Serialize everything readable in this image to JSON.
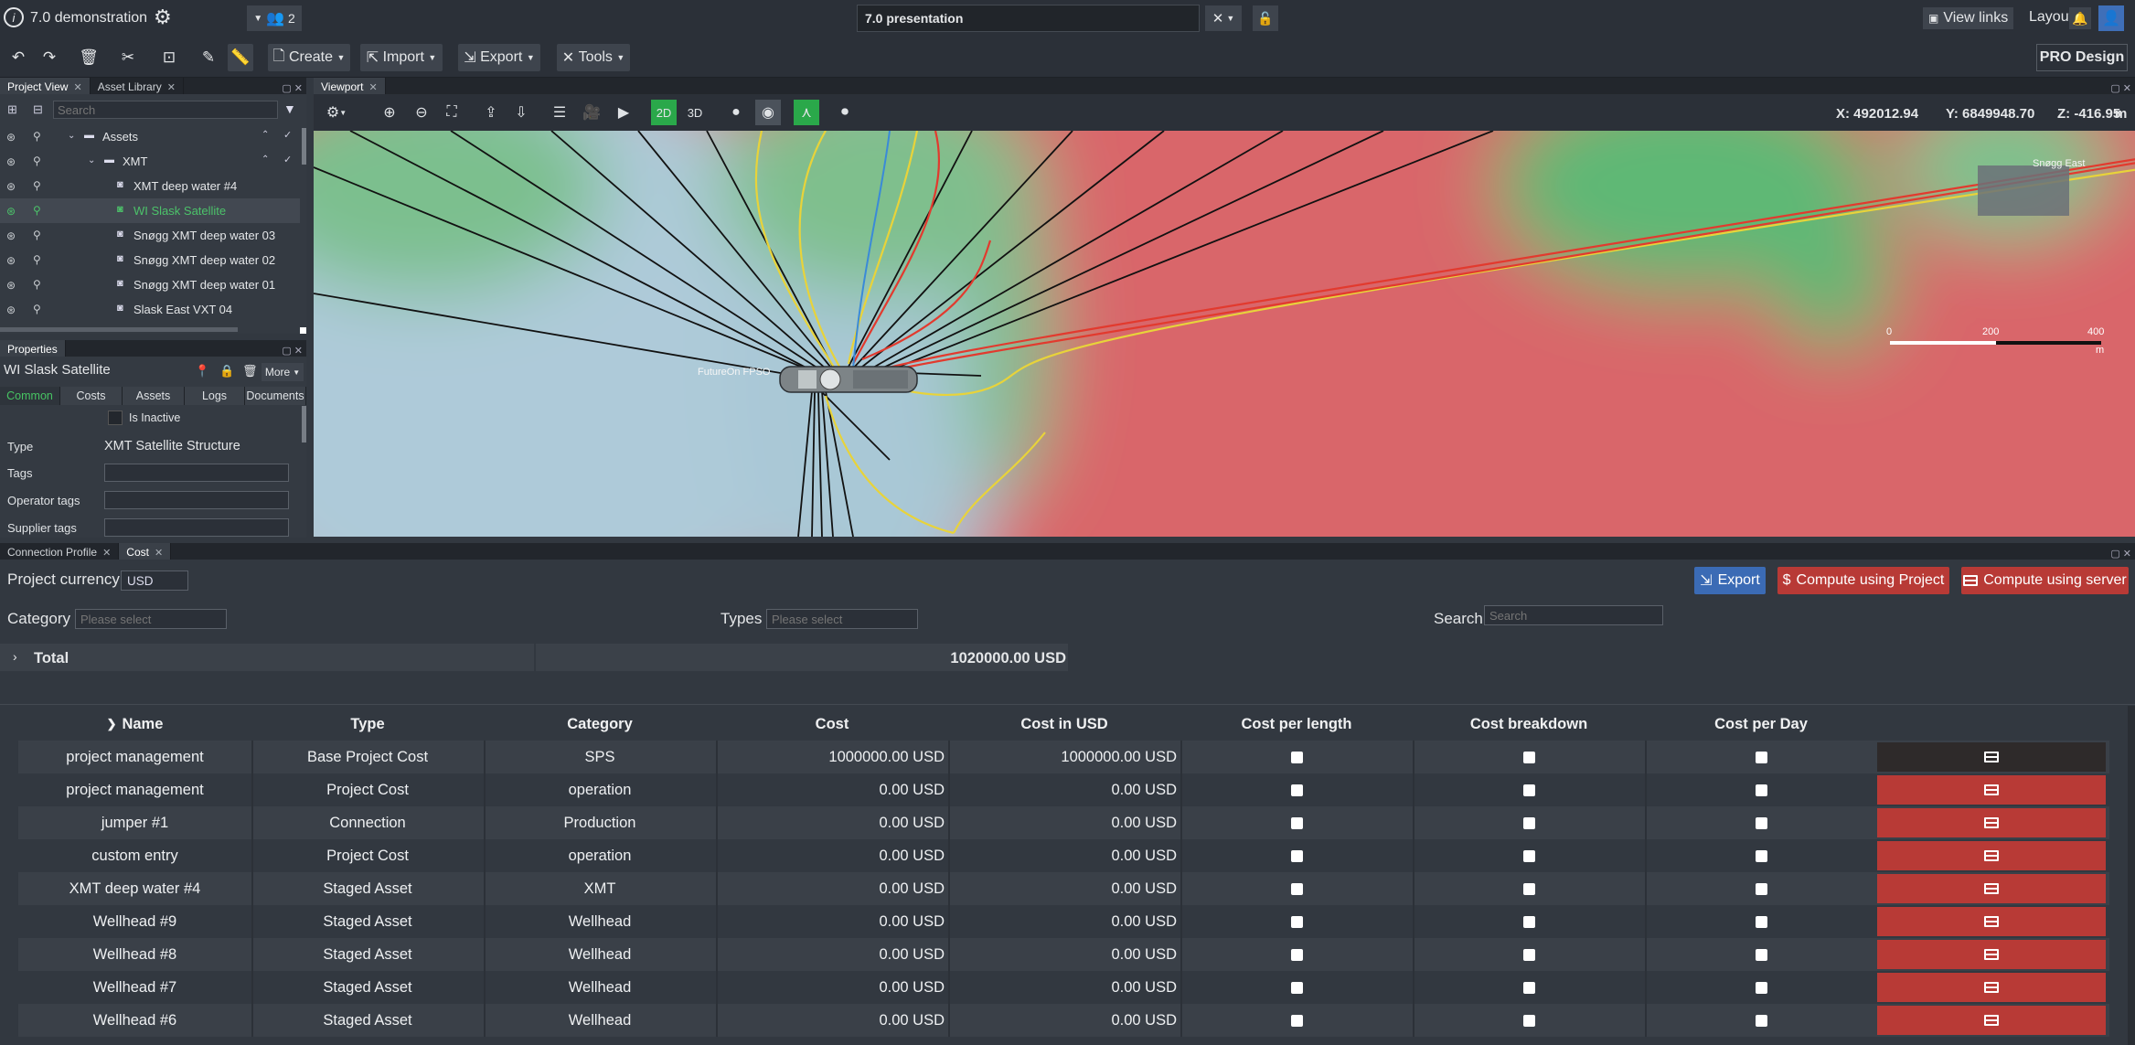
{
  "topbar": {
    "project_name": "7.0 demonstration",
    "users_count": "2",
    "presentation_name": "7.0 presentation",
    "view_links": "View links",
    "layout": "Layout",
    "pro_design": "PRO Design"
  },
  "toolbar": {
    "create": "Create",
    "import": "Import",
    "export": "Export",
    "tools": "Tools"
  },
  "project_panel": {
    "tabs": [
      "Project View",
      "Asset Library"
    ],
    "search_placeholder": "Search",
    "tree": [
      {
        "label": "Assets",
        "indent": 0
      },
      {
        "label": "XMT",
        "indent": 1
      },
      {
        "label": "XMT deep water #4",
        "indent": 2
      },
      {
        "label": "WI Slask Satellite",
        "indent": 2,
        "selected": true
      },
      {
        "label": "Snøgg XMT deep water 03",
        "indent": 2
      },
      {
        "label": "Snøgg XMT deep water 02",
        "indent": 2
      },
      {
        "label": "Snøgg XMT deep water 01",
        "indent": 2
      },
      {
        "label": "Slask East VXT 04",
        "indent": 2
      }
    ]
  },
  "properties_panel": {
    "tab": "Properties",
    "title": "WI Slask Satellite",
    "more": "More",
    "tabs": [
      "Common",
      "Costs",
      "Assets",
      "Logs",
      "Documents"
    ],
    "is_inactive": "Is Inactive",
    "type_label": "Type",
    "type_value": "XMT Satellite Structure",
    "tags_label": "Tags",
    "operator_tags_label": "Operator tags",
    "supplier_tags_label": "Supplier tags"
  },
  "viewport": {
    "tab": "Viewport",
    "mode_2d": "2D",
    "mode_3d": "3D",
    "coord_x": "X: 492012.94",
    "coord_y": "Y: 6849948.70",
    "coord_z": "Z: -416.95",
    "coord_unit": "m",
    "fpso_label": "FutureOn FPSO",
    "east_label": "Snøgg East",
    "scale": [
      "0",
      "200",
      "400"
    ],
    "scale_unit": "m"
  },
  "cost_panel": {
    "tabs": [
      "Connection Profile",
      "Cost"
    ],
    "project_currency_label": "Project currency",
    "project_currency_value": "USD",
    "export_btn": "Export",
    "compute_project_btn": "Compute using Project",
    "compute_server_btn": "Compute using server",
    "category_label": "Category",
    "category_placeholder": "Please select",
    "types_label": "Types",
    "types_placeholder": "Please select",
    "search_label": "Search:",
    "search_placeholder": "Search",
    "total_label": "Total",
    "total_value": "1020000.00 USD",
    "columns": [
      "Name",
      "Type",
      "Category",
      "Cost",
      "Cost in USD",
      "Cost per length",
      "Cost breakdown",
      "Cost per Day"
    ],
    "rows": [
      {
        "name": "project management",
        "type": "Base Project Cost",
        "category": "SPS",
        "cost": "1000000.00 USD",
        "cost_usd": "1000000.00 USD",
        "dark": true
      },
      {
        "name": "project management",
        "type": "Project Cost",
        "category": "operation",
        "cost": "0.00 USD",
        "cost_usd": "0.00 USD"
      },
      {
        "name": "jumper #1",
        "type": "Connection",
        "category": "Production",
        "cost": "0.00 USD",
        "cost_usd": "0.00 USD"
      },
      {
        "name": "custom entry",
        "type": "Project Cost",
        "category": "operation",
        "cost": "0.00 USD",
        "cost_usd": "0.00 USD"
      },
      {
        "name": "XMT deep water #4",
        "type": "Staged Asset",
        "category": "XMT",
        "cost": "0.00 USD",
        "cost_usd": "0.00 USD"
      },
      {
        "name": "Wellhead #9",
        "type": "Staged Asset",
        "category": "Wellhead",
        "cost": "0.00 USD",
        "cost_usd": "0.00 USD"
      },
      {
        "name": "Wellhead #8",
        "type": "Staged Asset",
        "category": "Wellhead",
        "cost": "0.00 USD",
        "cost_usd": "0.00 USD"
      },
      {
        "name": "Wellhead #7",
        "type": "Staged Asset",
        "category": "Wellhead",
        "cost": "0.00 USD",
        "cost_usd": "0.00 USD"
      },
      {
        "name": "Wellhead #6",
        "type": "Staged Asset",
        "category": "Wellhead",
        "cost": "0.00 USD",
        "cost_usd": "0.00 USD"
      }
    ]
  },
  "colors": {
    "accent_red": "#b83a36",
    "accent_blue": "#3b6bb5",
    "accent_green": "#2aa84a"
  }
}
